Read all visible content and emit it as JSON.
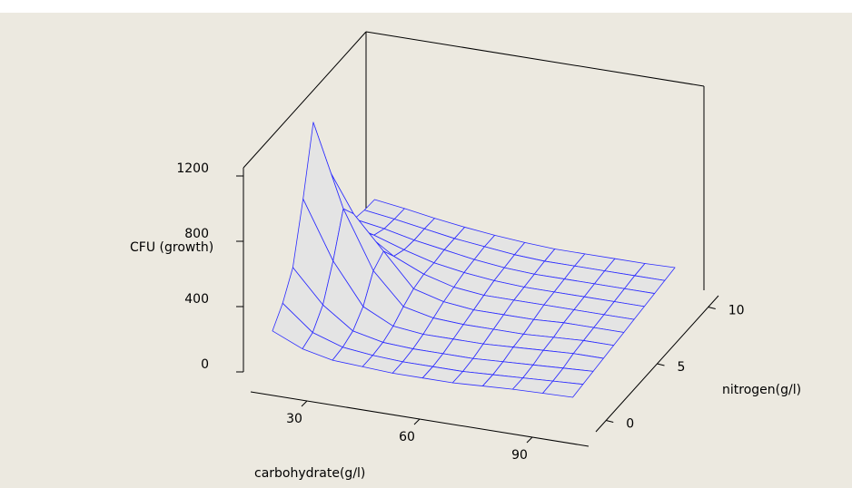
{
  "chart_data": {
    "type": "surface",
    "x_label": "carbohydrate(g/l)",
    "y_label": "nitrogen(g/l)",
    "z_label": "CFU (growth)",
    "x": [
      20,
      28,
      36,
      44,
      52,
      60,
      68,
      76,
      84,
      92,
      100
    ],
    "y": [
      0,
      1,
      2,
      3,
      4,
      5,
      6,
      7,
      8,
      9,
      10
    ],
    "z": [
      [
        200,
        120,
        80,
        70,
        60,
        60,
        60,
        70,
        80,
        85,
        90
      ],
      [
        300,
        150,
        90,
        70,
        60,
        60,
        60,
        70,
        80,
        90,
        100
      ],
      [
        450,
        250,
        120,
        80,
        70,
        70,
        70,
        80,
        90,
        100,
        110
      ],
      [
        800,
        450,
        200,
        110,
        90,
        90,
        90,
        100,
        110,
        120,
        120
      ],
      [
        1200,
        700,
        350,
        160,
        120,
        110,
        110,
        110,
        120,
        130,
        130
      ],
      [
        900,
        600,
        400,
        200,
        150,
        130,
        130,
        130,
        140,
        140,
        140
      ],
      [
        550,
        420,
        300,
        220,
        170,
        150,
        150,
        150,
        150,
        150,
        150
      ],
      [
        380,
        330,
        270,
        220,
        190,
        170,
        160,
        160,
        160,
        160,
        160
      ],
      [
        330,
        300,
        260,
        230,
        200,
        180,
        170,
        170,
        170,
        170,
        170
      ],
      [
        315,
        290,
        260,
        230,
        210,
        190,
        180,
        180,
        180,
        180,
        180
      ],
      [
        310,
        285,
        255,
        230,
        210,
        195,
        185,
        185,
        185,
        185,
        190
      ]
    ],
    "xlim": [
      15,
      105
    ],
    "ylim": [
      -1,
      11
    ],
    "zlim": [
      0,
      1250
    ],
    "xticks": [
      30,
      60,
      90
    ],
    "yticks": [
      0,
      5,
      10
    ],
    "zticks": [
      0,
      400,
      800,
      1200
    ],
    "surface_color": "#e4e4e4",
    "mesh_color": "#2b2bff"
  }
}
